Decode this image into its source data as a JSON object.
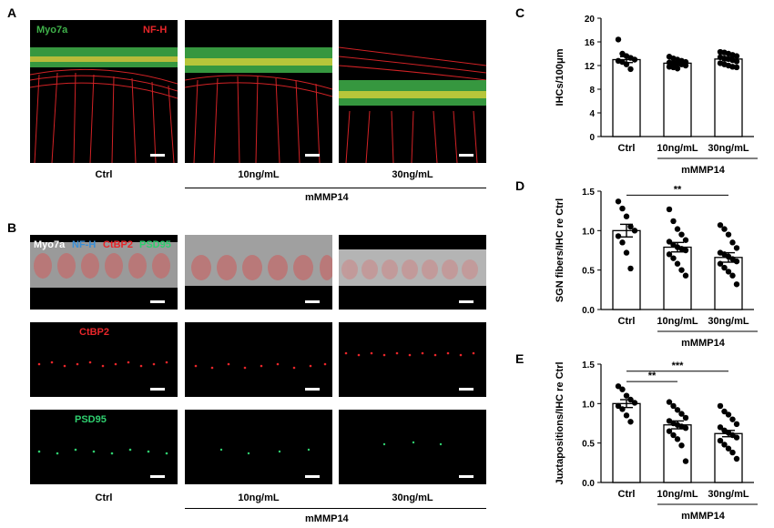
{
  "panels": {
    "A": "A",
    "B": "B",
    "C": "C",
    "D": "D",
    "E": "E"
  },
  "microscopy": {
    "a_stain_1": "Myo7a",
    "a_stain_2": "NF-H",
    "b_stain_myo7a": "Myo7a",
    "b_stain_nfh": "NF-H",
    "b_stain_ctbp2": "CtBP2",
    "b_stain_psd95": "PSD95",
    "b_row2_label": "CtBP2",
    "b_row3_label": "PSD95",
    "colors": {
      "myo7a_green": "#3fb24a",
      "nfh_red": "#e8262a",
      "nfh_blue": "#3a8fd6",
      "ctbp2_red": "#e8262a",
      "psd95_green": "#2fcf6f",
      "white": "#ffffff"
    },
    "conditions": [
      "Ctrl",
      "10ng/mL",
      "30ng/mL"
    ],
    "group_label": "mMMP14"
  },
  "chart_data": [
    {
      "panel": "C",
      "type": "bar",
      "categories": [
        "Ctrl",
        "10ng/mL",
        "30ng/mL"
      ],
      "values": [
        13.0,
        12.4,
        13.1
      ],
      "sem": [
        0.5,
        0.2,
        0.3
      ],
      "points": [
        [
          16.4,
          14.0,
          13.6,
          13.3,
          13.0,
          12.8,
          12.6,
          12.2,
          11.4
        ],
        [
          13.5,
          13.2,
          13.0,
          12.8,
          12.6,
          12.5,
          12.4,
          12.3,
          12.2,
          12.0,
          11.8,
          11.7,
          11.5
        ],
        [
          14.3,
          14.2,
          14.0,
          13.8,
          13.6,
          13.4,
          13.2,
          13.1,
          12.9,
          12.7,
          12.4,
          12.2,
          12.0,
          11.8,
          11.7
        ]
      ],
      "ylabel": "IHCs/100μm",
      "ylim": [
        0,
        20
      ],
      "yticks": [
        "0",
        "4",
        "8",
        "12",
        "16",
        "20"
      ],
      "group_label": "mMMP14",
      "significance": []
    },
    {
      "panel": "D",
      "type": "bar",
      "categories": [
        "Ctrl",
        "10ng/mL",
        "30ng/mL"
      ],
      "values": [
        1.0,
        0.79,
        0.66
      ],
      "sem": [
        0.08,
        0.06,
        0.06
      ],
      "points": [
        [
          1.37,
          1.28,
          1.18,
          1.05,
          1.0,
          0.93,
          0.85,
          0.72,
          0.52
        ],
        [
          1.27,
          1.12,
          1.02,
          0.95,
          0.88,
          0.86,
          0.82,
          0.79,
          0.77,
          0.75,
          0.7,
          0.65,
          0.58,
          0.5,
          0.43
        ],
        [
          1.07,
          1.02,
          0.95,
          0.85,
          0.78,
          0.72,
          0.7,
          0.67,
          0.64,
          0.61,
          0.58,
          0.53,
          0.48,
          0.43,
          0.32
        ]
      ],
      "ylabel": "SGN fibers/IHC re Ctrl",
      "ylim": [
        0,
        1.5
      ],
      "yticks": [
        "0.0",
        "0.5",
        "1.0",
        "1.5"
      ],
      "group_label": "mMMP14",
      "significance": [
        {
          "from": 0,
          "to": 2,
          "label": "**",
          "y": 1.45
        }
      ]
    },
    {
      "panel": "E",
      "type": "bar",
      "categories": [
        "Ctrl",
        "10ng/mL",
        "30ng/mL"
      ],
      "values": [
        1.0,
        0.73,
        0.62
      ],
      "sem": [
        0.05,
        0.05,
        0.04
      ],
      "points": [
        [
          1.22,
          1.18,
          1.1,
          1.05,
          1.01,
          0.97,
          0.93,
          0.85,
          0.77
        ],
        [
          1.02,
          0.97,
          0.92,
          0.87,
          0.82,
          0.78,
          0.75,
          0.73,
          0.71,
          0.69,
          0.65,
          0.6,
          0.55,
          0.47,
          0.27
        ],
        [
          0.97,
          0.9,
          0.86,
          0.8,
          0.74,
          0.7,
          0.66,
          0.63,
          0.6,
          0.57,
          0.53,
          0.48,
          0.43,
          0.38,
          0.3
        ]
      ],
      "ylabel": "Juxtapositions/IHC re Ctrl",
      "ylim": [
        0,
        1.5
      ],
      "yticks": [
        "0.0",
        "0.5",
        "1.0",
        "1.5"
      ],
      "group_label": "mMMP14",
      "significance": [
        {
          "from": 0,
          "to": 1,
          "label": "**",
          "y": 1.28
        },
        {
          "from": 0,
          "to": 2,
          "label": "***",
          "y": 1.41
        }
      ]
    }
  ]
}
